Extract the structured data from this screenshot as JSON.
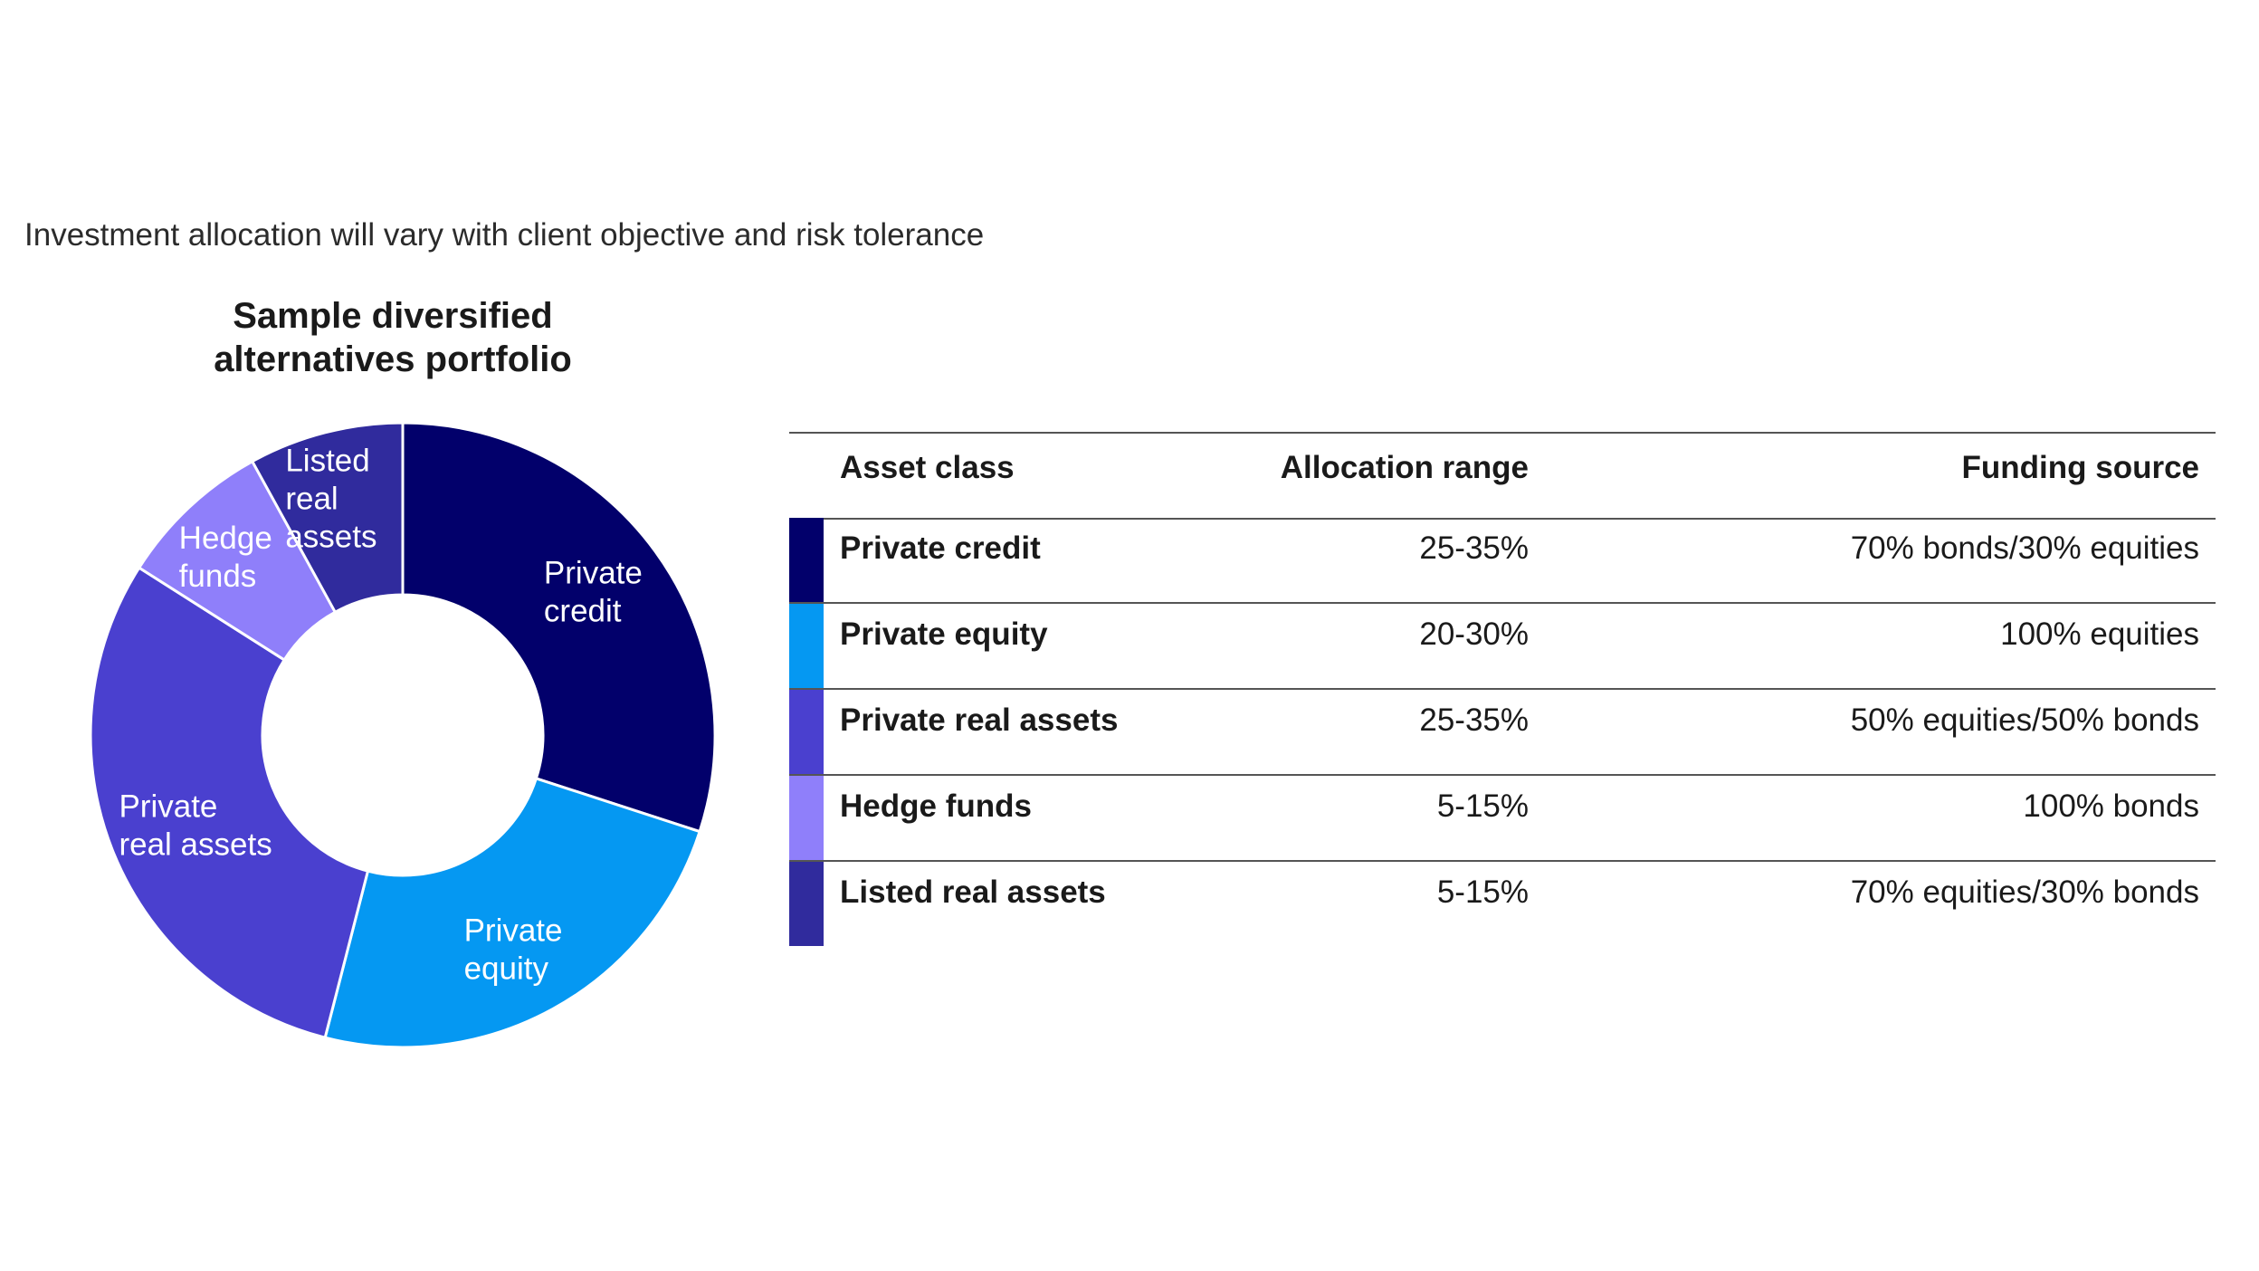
{
  "subtitle": "Investment allocation will vary with client objective and risk tolerance",
  "chart_title_line1": "Sample diversified",
  "chart_title_line2": "alternatives portfolio",
  "chart_data": {
    "type": "pie",
    "variant": "donut",
    "title": "Sample diversified alternatives portfolio",
    "unit": "%",
    "slices": [
      {
        "name": "Private credit",
        "label_lines": [
          "Private",
          "credit"
        ],
        "value": 30,
        "color": "#02006b"
      },
      {
        "name": "Private equity",
        "label_lines": [
          "Private",
          "equity"
        ],
        "value": 24,
        "color": "#0598f2"
      },
      {
        "name": "Private real assets",
        "label_lines": [
          "Private",
          "real assets"
        ],
        "value": 30,
        "color": "#4a40cf"
      },
      {
        "name": "Hedge funds",
        "label_lines": [
          "Hedge",
          "funds"
        ],
        "value": 8,
        "color": "#8f7ffa"
      },
      {
        "name": "Listed real assets",
        "label_lines": [
          "Listed",
          "real",
          "assets"
        ],
        "value": 8,
        "color": "#302b9d"
      }
    ]
  },
  "table": {
    "headers": [
      "Asset class",
      "Allocation range",
      "Funding source"
    ],
    "rows": [
      {
        "asset": "Private credit",
        "range": "25-35%",
        "funding": "70% bonds/30% equities",
        "color": "#02006b"
      },
      {
        "asset": "Private equity",
        "range": "20-30%",
        "funding": "100% equities",
        "color": "#0598f2"
      },
      {
        "asset": "Private real assets",
        "range": "25-35%",
        "funding": "50% equities/50% bonds",
        "color": "#4a40cf"
      },
      {
        "asset": "Hedge funds",
        "range": "5-15%",
        "funding": "100% bonds",
        "color": "#8f7ffa"
      },
      {
        "asset": "Listed real assets",
        "range": "5-15%",
        "funding": "70% equities/30% bonds",
        "color": "#302b9d"
      }
    ]
  }
}
